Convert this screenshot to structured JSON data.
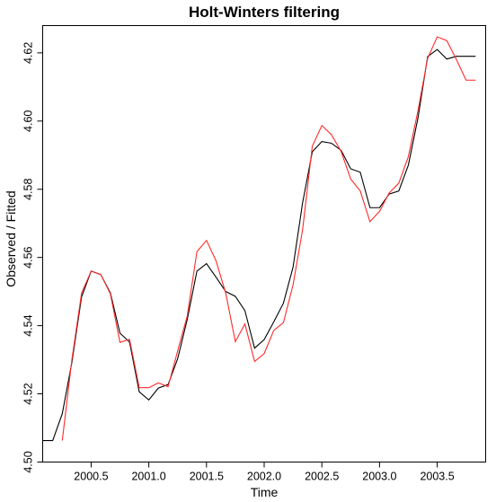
{
  "chart_data": {
    "type": "line",
    "title": "Holt-Winters filtering",
    "xlabel": "Time",
    "ylabel": "Observed / Fitted",
    "xlim": [
      2000.08,
      2003.92
    ],
    "ylim": [
      4.5,
      4.628
    ],
    "xticks": [
      2000.5,
      2001.0,
      2001.5,
      2002.0,
      2002.5,
      2003.0,
      2003.5
    ],
    "xtick_labels": [
      "2000.5",
      "2001.0",
      "2001.5",
      "2002.0",
      "2002.5",
      "2003.0",
      "2003.5"
    ],
    "yticks": [
      4.5,
      4.52,
      4.54,
      4.56,
      4.58,
      4.6,
      4.62
    ],
    "ytick_labels": [
      "4.50",
      "4.52",
      "4.54",
      "4.56",
      "4.58",
      "4.60",
      "4.62"
    ],
    "grid": false,
    "legend": "none",
    "series": [
      {
        "color": "#000000",
        "x": [
          2000.083,
          2000.167,
          2000.25,
          2000.333,
          2000.417,
          2000.5,
          2000.583,
          2000.667,
          2000.75,
          2000.833,
          2000.917,
          2001.0,
          2001.083,
          2001.167,
          2001.25,
          2001.333,
          2001.417,
          2001.5,
          2001.583,
          2001.667,
          2001.75,
          2001.833,
          2001.917,
          2002.0,
          2002.083,
          2002.167,
          2002.25,
          2002.333,
          2002.417,
          2002.5,
          2002.583,
          2002.667,
          2002.75,
          2002.833,
          2002.917,
          2003.0,
          2003.083,
          2003.167,
          2003.25,
          2003.333,
          2003.417,
          2003.5,
          2003.583,
          2003.667,
          2003.75,
          2003.833
        ],
        "y": [
          4.5063,
          4.5063,
          4.5142,
          4.5292,
          4.5484,
          4.556,
          4.555,
          4.5496,
          4.5378,
          4.5352,
          4.5206,
          4.5182,
          4.5217,
          4.5227,
          4.5303,
          4.5418,
          4.556,
          4.5582,
          4.5542,
          4.55,
          4.5486,
          4.5444,
          4.5334,
          4.5359,
          4.5411,
          4.5466,
          4.5571,
          4.576,
          4.591,
          4.594,
          4.5935,
          4.5914,
          4.586,
          4.585,
          4.5746,
          4.5746,
          4.5786,
          4.5795,
          4.5871,
          4.6009,
          4.6189,
          4.621,
          4.6182,
          4.619,
          4.619,
          4.619
        ]
      },
      {
        "color": "#ff0000",
        "x": [
          2000.25,
          2000.333,
          2000.417,
          2000.5,
          2000.583,
          2000.667,
          2000.75,
          2000.833,
          2000.917,
          2001.0,
          2001.083,
          2001.167,
          2001.25,
          2001.333,
          2001.417,
          2001.5,
          2001.583,
          2001.667,
          2001.75,
          2001.833,
          2001.917,
          2002.0,
          2002.083,
          2002.167,
          2002.25,
          2002.333,
          2002.417,
          2002.5,
          2002.583,
          2002.667,
          2002.75,
          2002.833,
          2002.917,
          2003.0,
          2003.083,
          2003.167,
          2003.25,
          2003.333,
          2003.417,
          2003.5,
          2003.583,
          2003.667,
          2003.75,
          2003.833
        ],
        "y": [
          4.5063,
          4.53,
          4.5495,
          4.556,
          4.555,
          4.5493,
          4.5351,
          4.536,
          4.5218,
          4.5218,
          4.5232,
          4.5221,
          4.5326,
          4.5428,
          4.5617,
          4.565,
          4.559,
          4.5495,
          4.5353,
          4.5405,
          4.5295,
          4.5318,
          4.5386,
          4.5409,
          4.5519,
          4.5681,
          4.5926,
          4.5987,
          4.596,
          4.5911,
          4.583,
          4.5795,
          4.5705,
          4.5735,
          4.5789,
          4.5818,
          4.5896,
          4.603,
          4.6184,
          4.6247,
          4.6236,
          4.618,
          4.612,
          4.612
        ]
      }
    ]
  }
}
